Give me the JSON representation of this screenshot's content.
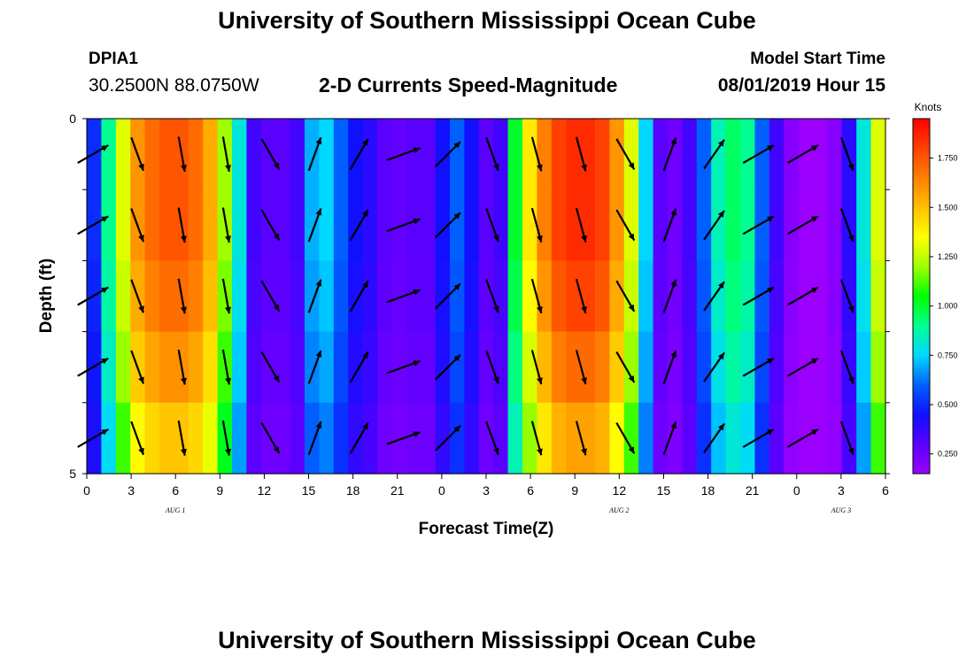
{
  "header": {
    "title": "University of Southern Mississippi Ocean Cube",
    "station_id": "DPIA1",
    "station_location": "30.2500N 88.0750W",
    "subtitle": "2-D Currents Speed-Magnitude",
    "model_start_label": "Model Start Time",
    "model_start_value": "08/01/2019 Hour 15"
  },
  "footer": {
    "title": "University of Southern Mississippi Ocean Cube"
  },
  "chart_data": {
    "type": "heatmap",
    "title": "2-D Currents Speed-Magnitude",
    "xlabel": "Forecast Time(Z)",
    "ylabel": "Depth (ft)",
    "x_hours": [
      0,
      1,
      2,
      3,
      4,
      5,
      6,
      7,
      8,
      9,
      10,
      11,
      12,
      13,
      14,
      15,
      16,
      17,
      18,
      19,
      20,
      21,
      22,
      23,
      24,
      25,
      26,
      27,
      28,
      29,
      30,
      31,
      32,
      33,
      34,
      35,
      36,
      37,
      38,
      39,
      40,
      41,
      42,
      43,
      44,
      45,
      46,
      47,
      48,
      49,
      50,
      51,
      52,
      53,
      54
    ],
    "x_tick_labels": [
      "0",
      "3",
      "6",
      "9",
      "12",
      "15",
      "18",
      "21",
      "0",
      "3",
      "6",
      "9",
      "12",
      "15",
      "18",
      "21",
      "0",
      "3",
      "6"
    ],
    "date_labels": [
      {
        "text": "AUG 1",
        "hour": 6
      },
      {
        "text": "AUG 2",
        "hour": 36
      },
      {
        "text": "AUG 3",
        "hour": 51
      }
    ],
    "y_range": [
      0,
      5
    ],
    "y_tick_labels": [
      "0",
      "5"
    ],
    "depth_levels": 5,
    "speed_base": [
      0.5,
      0.9,
      1.3,
      1.6,
      1.7,
      1.75,
      1.75,
      1.7,
      1.55,
      1.2,
      0.8,
      0.35,
      0.3,
      0.3,
      0.35,
      0.7,
      0.75,
      0.6,
      0.45,
      0.4,
      0.3,
      0.28,
      0.3,
      0.3,
      0.45,
      0.6,
      0.45,
      0.3,
      0.35,
      1.0,
      1.4,
      1.65,
      1.8,
      1.85,
      1.85,
      1.8,
      1.6,
      1.3,
      0.75,
      0.3,
      0.25,
      0.35,
      0.6,
      0.85,
      0.95,
      0.9,
      0.6,
      0.35,
      0.2,
      0.15,
      0.15,
      0.2,
      0.4,
      0.8,
      1.3
    ],
    "level_factors": [
      1.0,
      1.0,
      0.97,
      0.92,
      0.85
    ],
    "colorbar": {
      "unit": "Knots",
      "min": 0.15,
      "max": 1.95,
      "ticks": [
        "0.250",
        "0.500",
        "0.750",
        "1.000",
        "1.250",
        "1.500",
        "1.750"
      ],
      "tick_values": [
        0.25,
        0.5,
        0.75,
        1.0,
        1.25,
        1.5,
        1.75
      ],
      "colors": [
        "#9b00ff",
        "#5a00ff",
        "#1010ff",
        "#0060ff",
        "#00d8ff",
        "#00ff90",
        "#00ff00",
        "#a0ff00",
        "#ffff00",
        "#ffc000",
        "#ff8000",
        "#ff4000",
        "#ff0000"
      ]
    },
    "arrow_hours": [
      0,
      3,
      6,
      9,
      12,
      15,
      18,
      21,
      24,
      27,
      30,
      33,
      36,
      39,
      42,
      45,
      48,
      51
    ],
    "arrow_directions_deg": [
      60,
      160,
      170,
      170,
      150,
      20,
      30,
      70,
      45,
      160,
      165,
      165,
      150,
      20,
      35,
      60,
      60,
      160
    ]
  }
}
